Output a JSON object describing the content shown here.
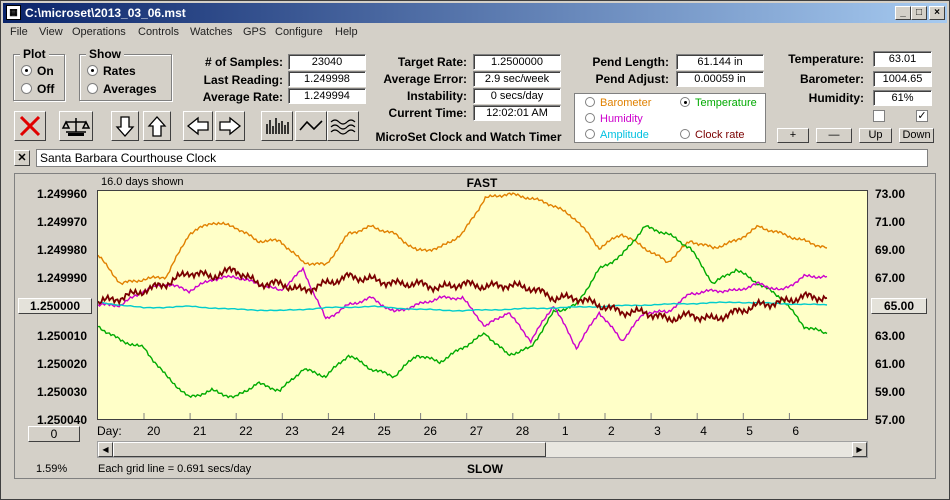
{
  "window": {
    "title": "C:\\microset\\2013_03_06.mst"
  },
  "menu": [
    "File",
    "View",
    "Operations",
    "Controls",
    "Watches",
    "GPS",
    "Configure",
    "Help"
  ],
  "plot_group": {
    "title": "Plot",
    "on": "On",
    "off": "Off",
    "selected": "On"
  },
  "show_group": {
    "title": "Show",
    "rates": "Rates",
    "averages": "Averages",
    "selected": "Rates"
  },
  "stats": {
    "samples_label": "# of Samples:",
    "samples": "23040",
    "last_reading_label": "Last Reading:",
    "last_reading": "1.249998",
    "average_rate_label": "Average Rate:",
    "average_rate": "1.249994",
    "target_rate_label": "Target Rate:",
    "target_rate": "1.2500000",
    "average_error_label": "Average Error:",
    "average_error": "2.9 sec/week",
    "instability_label": "Instability:",
    "instability": "0 secs/day",
    "current_time_label": "Current Time:",
    "current_time": "12:02:01 AM",
    "pend_length_label": "Pend Length:",
    "pend_length": "61.144 in",
    "pend_adjust_label": "Pend Adjust:",
    "pend_adjust": "0.00059 in",
    "temperature_label": "Temperature:",
    "temperature": "63.01",
    "barometer_label": "Barometer:",
    "barometer": "1004.65",
    "humidity_label": "Humidity:",
    "humidity": "61%"
  },
  "app_caption": "MicroSet Clock and Watch Timer",
  "overlay_options": {
    "barometer": "Barometer",
    "temperature": "Temperature",
    "humidity": "Humidity",
    "amplitude": "Amplitude",
    "clock_rate": "Clock rate",
    "selected": "Temperature"
  },
  "colors": {
    "barometer": "#e08000",
    "temperature": "#00aa00",
    "humidity": "#cc00cc",
    "amplitude": "#00cccc",
    "clock_rate": "#7a0000",
    "plot_bg": "#ffffc8"
  },
  "small_buttons": [
    "+",
    "—",
    "Up",
    "Down"
  ],
  "toolbar_icons": [
    "delete-icon",
    "scale-icon",
    "down-arrow-icon",
    "up-arrow-icon",
    "left-arrow-icon",
    "right-arrow-icon",
    "bar-graph-icon",
    "line-graph-icon",
    "wave-graph-icon"
  ],
  "clock_name": "Santa Barbara Courthouse Clock",
  "chart": {
    "days_shown": "16.0 days shown",
    "top_label": "FAST",
    "bottom_label": "SLOW",
    "day_label": "Day:",
    "grid_note": "Each grid line = 0.691 secs/day",
    "percent": "1.59%",
    "left_center_value": "1.250000",
    "right_center_value": "65.00",
    "left_bottom_value": "0"
  },
  "chart_data": {
    "type": "line",
    "x_label": "Day:",
    "x_ticks": [
      "20",
      "21",
      "22",
      "23",
      "24",
      "25",
      "26",
      "27",
      "28",
      "1",
      "2",
      "3",
      "4",
      "5",
      "6"
    ],
    "y_left_ticks": [
      "1.249960",
      "1.249970",
      "1.249980",
      "1.249990",
      "1.250000",
      "1.250010",
      "1.250020",
      "1.250030",
      "1.250040"
    ],
    "y_right_ticks": [
      "73.00",
      "71.00",
      "69.00",
      "67.00",
      "65.00",
      "63.00",
      "61.00",
      "59.00",
      "57.00"
    ],
    "ylim_left": [
      1.24996,
      1.25004
    ],
    "ylim_right": [
      57,
      73
    ],
    "grid": false,
    "series": [
      {
        "name": "Barometer",
        "color": "#e08000",
        "x": [
          19.0,
          19.5,
          20.0,
          20.5,
          21.0,
          21.5,
          22.0,
          22.5,
          23.0,
          23.5,
          24.0,
          24.5,
          25.0,
          25.5,
          26.0,
          26.5,
          27.0,
          27.5,
          28.0,
          28.5,
          29.0,
          29.5,
          30.0,
          30.5,
          31.0,
          31.5,
          32.0,
          32.5,
          33.0,
          33.5,
          34.0,
          34.5,
          35.0
        ],
        "y": [
          68.5,
          66.5,
          66.8,
          67.0,
          70.0,
          70.8,
          70.5,
          69.5,
          69.5,
          68.0,
          67.8,
          70.0,
          70.5,
          70.0,
          68.8,
          69.0,
          70.0,
          72.5,
          72.8,
          72.5,
          72.0,
          71.0,
          69.0,
          70.0,
          69.0,
          68.0,
          69.5,
          69.0,
          69.5,
          70.5,
          70.0,
          69.5,
          69.0
        ]
      },
      {
        "name": "Temperature",
        "color": "#00aa00",
        "x": [
          19.0,
          19.5,
          20.0,
          20.5,
          21.0,
          21.5,
          22.0,
          22.5,
          23.0,
          23.5,
          24.0,
          24.5,
          25.0,
          25.5,
          26.0,
          26.5,
          27.0,
          27.5,
          28.0,
          28.5,
          29.0,
          29.5,
          30.0,
          30.5,
          31.0,
          31.5,
          32.0,
          32.5,
          33.0,
          33.5,
          34.0,
          34.5,
          35.0
        ],
        "y": [
          63.5,
          62.5,
          62.0,
          60.0,
          58.5,
          59.0,
          58.5,
          59.5,
          59.0,
          60.5,
          60.0,
          61.5,
          60.5,
          60.0,
          61.5,
          61.0,
          62.0,
          63.0,
          61.5,
          62.0,
          64.5,
          65.0,
          67.5,
          68.5,
          70.5,
          70.0,
          69.0,
          66.5,
          67.5,
          66.5,
          65.5,
          63.5,
          63.0
        ]
      },
      {
        "name": "Humidity",
        "color": "#cc00cc",
        "x": [
          19.0,
          19.5,
          20.0,
          20.5,
          21.0,
          21.5,
          22.0,
          22.5,
          23.0,
          23.5,
          24.0,
          24.5,
          25.0,
          25.5,
          26.0,
          26.5,
          27.0,
          27.5,
          28.0,
          28.5,
          29.0,
          29.5,
          30.0,
          30.5,
          31.0,
          31.5,
          32.0,
          32.5,
          33.0,
          33.5,
          34.0,
          34.5,
          35.0
        ],
        "y": [
          65.0,
          65.0,
          66.0,
          66.5,
          66.0,
          66.8,
          67.0,
          66.5,
          66.0,
          67.5,
          64.0,
          65.0,
          65.5,
          64.5,
          65.0,
          65.5,
          65.5,
          63.5,
          64.5,
          62.5,
          65.0,
          62.0,
          64.5,
          62.5,
          64.5,
          64.5,
          65.8,
          66.0,
          66.0,
          66.5,
          66.0,
          67.0,
          67.0
        ]
      },
      {
        "name": "Amplitude",
        "color": "#00cccc",
        "x": [
          19.0,
          20.0,
          21.0,
          22.0,
          23.0,
          24.0,
          25.0,
          26.0,
          27.0,
          28.0,
          29.0,
          30.0,
          31.0,
          32.0,
          33.0,
          34.0,
          35.0
        ],
        "y": [
          65.2,
          64.8,
          64.9,
          64.7,
          64.6,
          64.8,
          64.9,
          64.7,
          64.6,
          64.7,
          64.8,
          64.9,
          65.0,
          65.1,
          65.2,
          65.1,
          65.0
        ]
      },
      {
        "name": "Clock rate",
        "color": "#7a0000",
        "x": [
          19.0,
          19.5,
          20.0,
          20.5,
          21.0,
          21.5,
          22.0,
          22.5,
          23.0,
          23.5,
          24.0,
          24.5,
          25.0,
          25.5,
          26.0,
          26.5,
          27.0,
          27.5,
          28.0,
          28.5,
          29.0,
          29.5,
          30.0,
          30.5,
          31.0,
          31.5,
          32.0,
          32.5,
          33.0,
          33.5,
          34.0,
          34.5,
          35.0
        ],
        "y": [
          65.2,
          65.5,
          66.0,
          66.5,
          67.3,
          67.0,
          67.5,
          66.5,
          66.5,
          66.0,
          66.5,
          67.0,
          66.8,
          66.5,
          66.5,
          66.2,
          66.5,
          66.3,
          66.4,
          66.2,
          65.5,
          65.5,
          65.0,
          64.5,
          64.5,
          64.0,
          64.3,
          64.0,
          64.5,
          65.0,
          65.2,
          65.6,
          65.5
        ]
      }
    ]
  }
}
